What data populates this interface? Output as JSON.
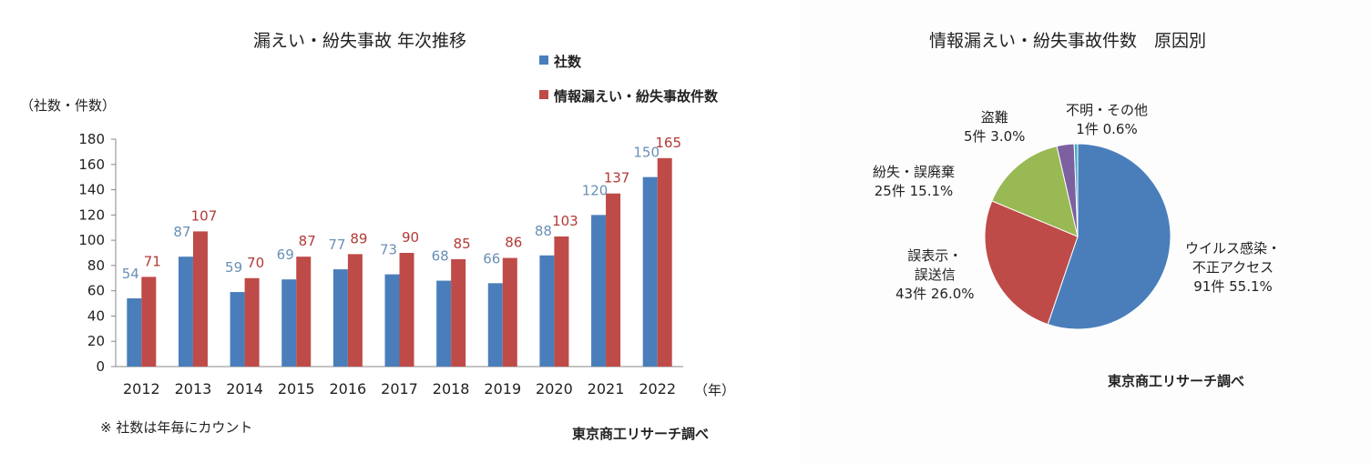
{
  "chart_data": [
    {
      "type": "bar",
      "title": "漏えい・紛失事故 年次推移",
      "ylabel": "（社数・件数）",
      "xlabel": "（年）",
      "ylim": [
        0,
        180
      ],
      "yticks": [
        0,
        20,
        40,
        60,
        80,
        100,
        120,
        140,
        160,
        180
      ],
      "categories": [
        "2012",
        "2013",
        "2014",
        "2015",
        "2016",
        "2017",
        "2018",
        "2019",
        "2020",
        "2021",
        "2022"
      ],
      "series": [
        {
          "name": "社数",
          "color": "#4a7ebb",
          "label_color": "#6a8fb5",
          "values": [
            54,
            87,
            59,
            69,
            77,
            73,
            68,
            66,
            88,
            120,
            150
          ]
        },
        {
          "name": "情報漏えい・紛失事故件数",
          "color": "#be4b48",
          "label_color": "#b23a36",
          "values": [
            71,
            107,
            70,
            87,
            89,
            90,
            85,
            86,
            103,
            137,
            165
          ]
        }
      ],
      "footnote": "※ 社数は年毎にカウント",
      "source": "東京商工リサーチ調べ"
    },
    {
      "type": "pie",
      "title": "情報漏えい・紛失事故件数　原因別",
      "source": "東京商工リサーチ調べ",
      "slices": [
        {
          "name": "ウイルス感染・不正アクセス",
          "name_lines": [
            "ウイルス感染・",
            "不正アクセス"
          ],
          "count": 91,
          "count_text": "91件 55.1%",
          "percent": 55.1,
          "color": "#4a7ebb"
        },
        {
          "name": "誤表示・誤送信",
          "name_lines": [
            "誤表示・",
            "誤送信"
          ],
          "count": 43,
          "count_text": "43件 26.0%",
          "percent": 26.0,
          "color": "#be4b48"
        },
        {
          "name": "紛失・誤廃棄",
          "name_lines": [
            "紛失・誤廃棄"
          ],
          "count": 25,
          "count_text": "25件 15.1%",
          "percent": 15.1,
          "color": "#98b954"
        },
        {
          "name": "盗難",
          "name_lines": [
            "盗難"
          ],
          "count": 5,
          "count_text": "5件 3.0%",
          "percent": 3.0,
          "color": "#7d60a0"
        },
        {
          "name": "不明・その他",
          "name_lines": [
            "不明・その他"
          ],
          "count": 1,
          "count_text": "1件 0.6%",
          "percent": 0.6,
          "color": "#46aac5"
        }
      ]
    }
  ]
}
